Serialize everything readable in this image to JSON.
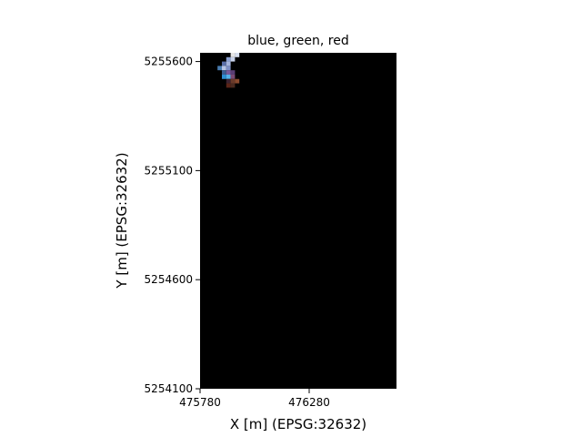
{
  "chart_data": {
    "type": "heatmap",
    "title": "blue, green, red",
    "xlabel": "X [m] (EPSG:32632)",
    "ylabel": "Y [m] (EPSG:32632)",
    "xlim": [
      475780,
      476680
    ],
    "ylim": [
      5254100,
      5255640
    ],
    "x_ticks": [
      475780,
      476280
    ],
    "x_tick_labels": [
      "475780",
      "476280"
    ],
    "y_ticks": [
      5254100,
      5254600,
      5255100,
      5255600
    ],
    "y_tick_labels": [
      "5254100",
      "5254600",
      "5255100",
      "5255600"
    ],
    "background_color": "#000000",
    "grid": false,
    "pixel_size_m": 20,
    "pixels": [
      {
        "x": 475920,
        "y": 5255640,
        "color": "#e6e6e6"
      },
      {
        "x": 475940,
        "y": 5255640,
        "color": "#d8e0f0"
      },
      {
        "x": 475900,
        "y": 5255620,
        "color": "#8a9fd0"
      },
      {
        "x": 475920,
        "y": 5255620,
        "color": "#c8d2ea"
      },
      {
        "x": 475880,
        "y": 5255600,
        "color": "#5a6fa8"
      },
      {
        "x": 475900,
        "y": 5255600,
        "color": "#a4b3dc"
      },
      {
        "x": 475860,
        "y": 5255580,
        "color": "#4a7cb0"
      },
      {
        "x": 475880,
        "y": 5255580,
        "color": "#b6c4e6"
      },
      {
        "x": 475900,
        "y": 5255580,
        "color": "#7d8fc6"
      },
      {
        "x": 475880,
        "y": 5255560,
        "color": "#3d5f94"
      },
      {
        "x": 475900,
        "y": 5255560,
        "color": "#7a5b9c"
      },
      {
        "x": 475920,
        "y": 5255560,
        "color": "#5a3e74"
      },
      {
        "x": 475880,
        "y": 5255540,
        "color": "#2e8fd4"
      },
      {
        "x": 475900,
        "y": 5255540,
        "color": "#55b2ea"
      },
      {
        "x": 475920,
        "y": 5255540,
        "color": "#7a4a72"
      },
      {
        "x": 475900,
        "y": 5255520,
        "color": "#3a2230"
      },
      {
        "x": 475920,
        "y": 5255520,
        "color": "#6a3a2a"
      },
      {
        "x": 475940,
        "y": 5255520,
        "color": "#8a4a2e"
      },
      {
        "x": 475900,
        "y": 5255500,
        "color": "#5a2418"
      },
      {
        "x": 475920,
        "y": 5255500,
        "color": "#4a2a20"
      }
    ]
  }
}
